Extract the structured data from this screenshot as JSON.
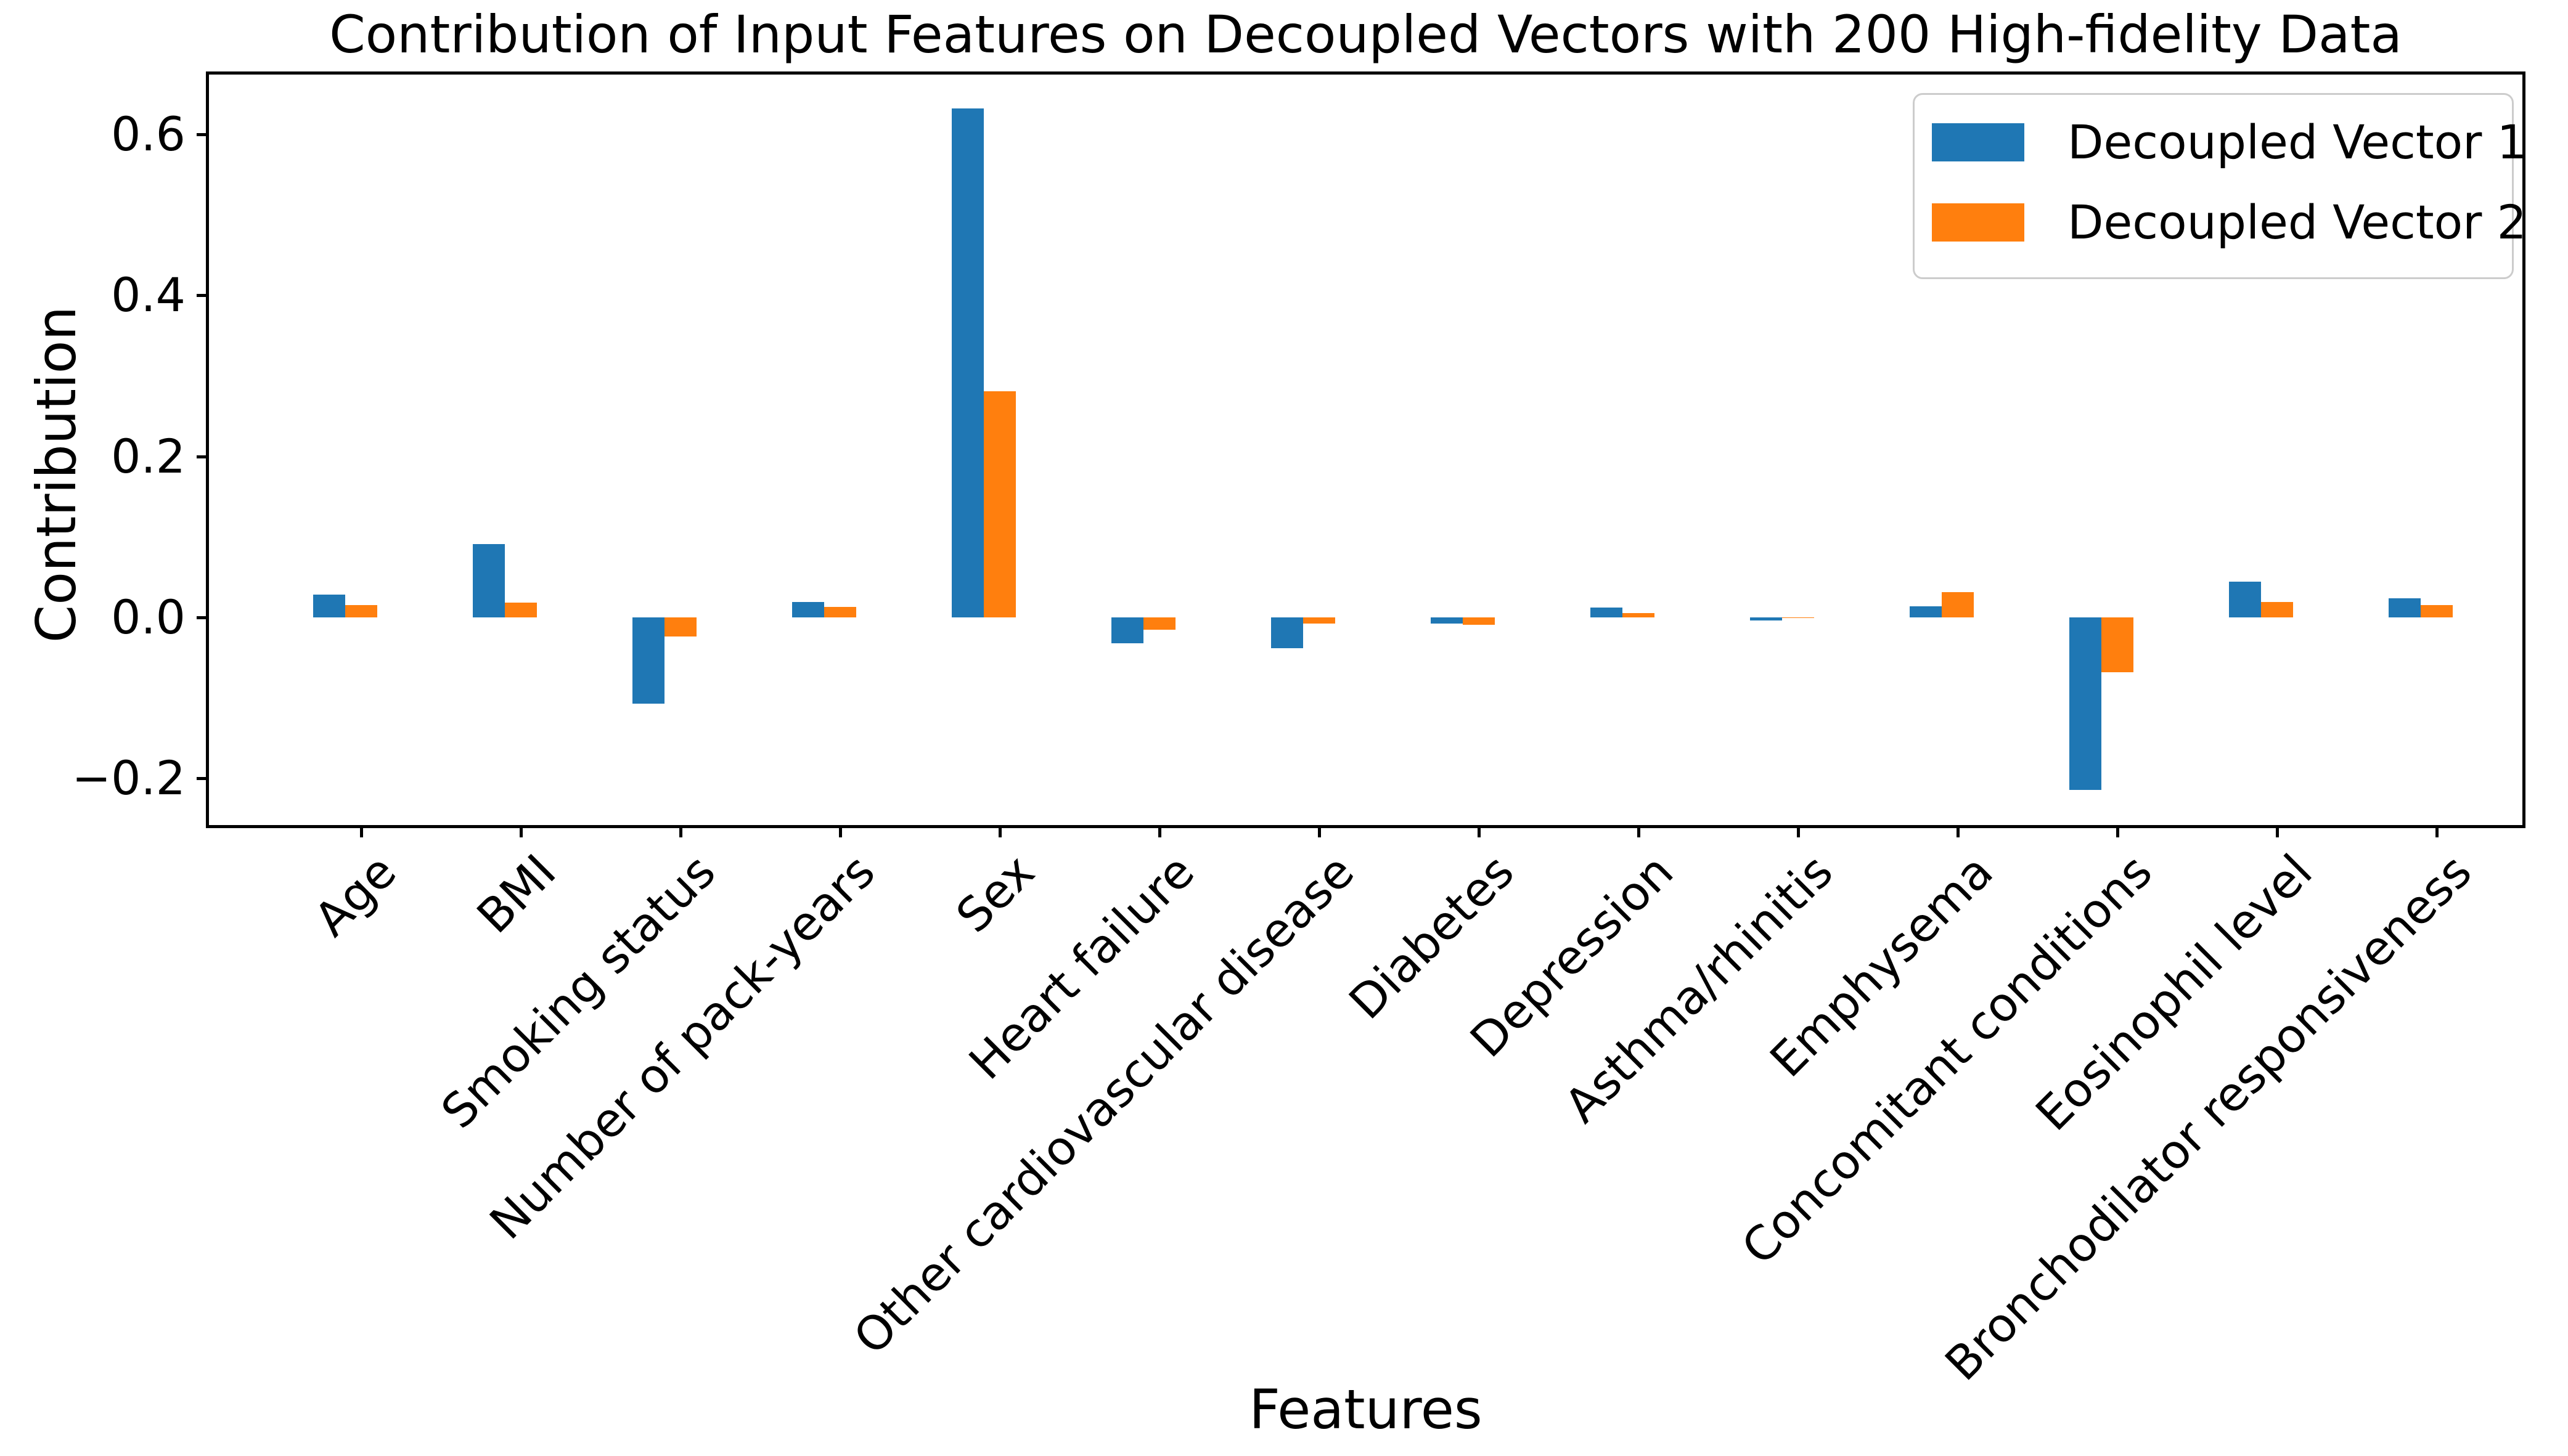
{
  "title": "Contribution of Input Features on Decoupled Vectors with 200 High-fidelity Data",
  "axes": {
    "x_label": "Features",
    "y_label": "Contribution",
    "y_ticks": [
      {
        "label": "0.6",
        "value": 0.6
      },
      {
        "label": "0.4",
        "value": 0.4
      },
      {
        "label": "0.2",
        "value": 0.2
      },
      {
        "label": "0.0",
        "value": 0.0
      },
      {
        "label": "−0.2",
        "value": -0.2
      }
    ]
  },
  "legend": {
    "position": "upper right",
    "entries": [
      {
        "label": "Decoupled Vector 1",
        "color": "#1f77b4"
      },
      {
        "label": "Decoupled Vector 2",
        "color": "#ff7f0e"
      }
    ]
  },
  "colors": {
    "series1": "#1f77b4",
    "series2": "#ff7f0e",
    "axis": "#000000",
    "legend_border": "#cccccc",
    "background": "#ffffff"
  },
  "chart_data": {
    "type": "bar",
    "title": "Contribution of Input Features on Decoupled Vectors with 200 High-fidelity Data",
    "xlabel": "Features",
    "ylabel": "Contribution",
    "ylim": [
      -0.257,
      0.673
    ],
    "grid": false,
    "legend_position": "upper right",
    "categories": [
      "Age",
      "BMI",
      "Smoking status",
      "Number of pack-years",
      "Sex",
      "Heart failure",
      "Other cardiovascular disease",
      "Diabetes",
      "Depression",
      "Asthma/rhinitis",
      "Emphysema",
      "Concomitant conditions",
      "Eosinophil level",
      "Bronchodilator responsiveness"
    ],
    "series": [
      {
        "name": "Decoupled Vector 1",
        "color": "#1f77b4",
        "values": [
          0.028,
          0.091,
          -0.107,
          0.019,
          0.632,
          -0.032,
          -0.038,
          -0.008,
          0.012,
          -0.004,
          0.014,
          -0.214,
          0.044,
          0.024
        ]
      },
      {
        "name": "Decoupled Vector 2",
        "color": "#ff7f0e",
        "values": [
          0.015,
          0.018,
          -0.024,
          0.013,
          0.281,
          -0.015,
          -0.008,
          -0.009,
          0.005,
          -0.001,
          0.031,
          -0.068,
          0.019,
          0.015
        ]
      }
    ]
  }
}
